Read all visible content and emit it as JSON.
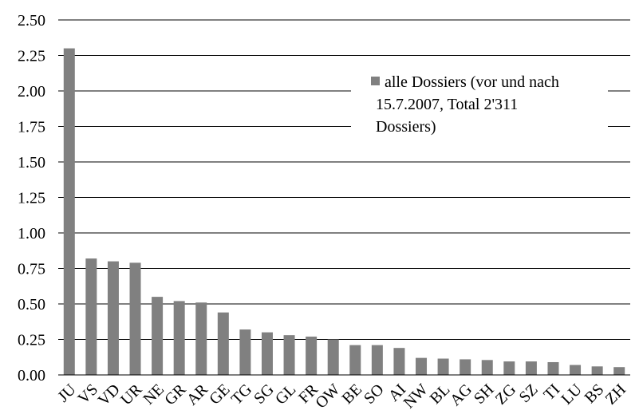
{
  "chart_data": {
    "type": "bar",
    "categories": [
      "JU",
      "VS",
      "VD",
      "UR",
      "NE",
      "GR",
      "AR",
      "GE",
      "TG",
      "SG",
      "GL",
      "FR",
      "OW",
      "BE",
      "SO",
      "AI",
      "NW",
      "BL",
      "AG",
      "SH",
      "ZG",
      "SZ",
      "TI",
      "LU",
      "BS",
      "ZH"
    ],
    "series": [
      {
        "name": "alle Dossiers (vor und nach 15.7.2007, Total 2'311 Dossiers)",
        "values": [
          2.3,
          0.82,
          0.8,
          0.79,
          0.55,
          0.52,
          0.51,
          0.44,
          0.32,
          0.3,
          0.28,
          0.27,
          0.25,
          0.21,
          0.21,
          0.19,
          0.12,
          0.115,
          0.11,
          0.105,
          0.095,
          0.095,
          0.09,
          0.07,
          0.06,
          0.055
        ]
      }
    ],
    "y_ticks": [
      "0.00",
      "0.25",
      "0.50",
      "0.75",
      "1.00",
      "1.25",
      "1.50",
      "1.75",
      "2.00",
      "2.25",
      "2.50"
    ],
    "ylim": [
      0,
      2.5
    ],
    "grid": true,
    "legend_position": "top-right",
    "legend_lines": [
      "alle Dossiers (vor und nach",
      "15.7.2007, Total 2'311",
      "Dossiers)"
    ],
    "colors": {
      "bar": "#808080",
      "grid": "#000000",
      "axis": "#000000"
    }
  }
}
